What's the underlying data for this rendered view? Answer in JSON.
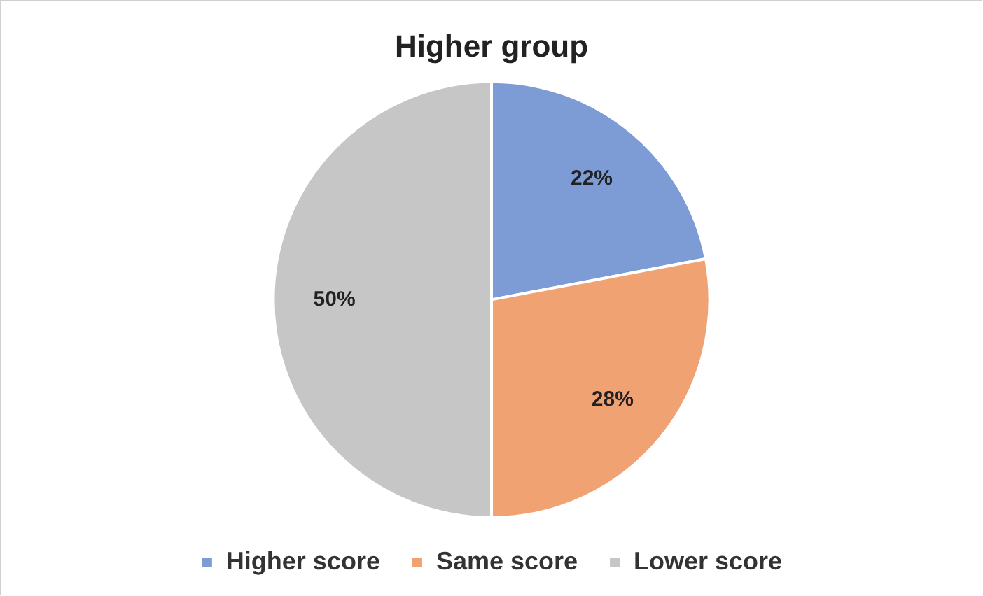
{
  "chart_data": {
    "type": "pie",
    "title": "Higher group",
    "categories": [
      "Higher score",
      "Same score",
      "Lower score"
    ],
    "values": [
      22,
      28,
      50
    ],
    "colors": [
      "#7d9cd6",
      "#f0a273",
      "#c6c6c6"
    ],
    "value_labels": [
      "22%",
      "28%",
      "50%"
    ],
    "legend": "bottom"
  }
}
